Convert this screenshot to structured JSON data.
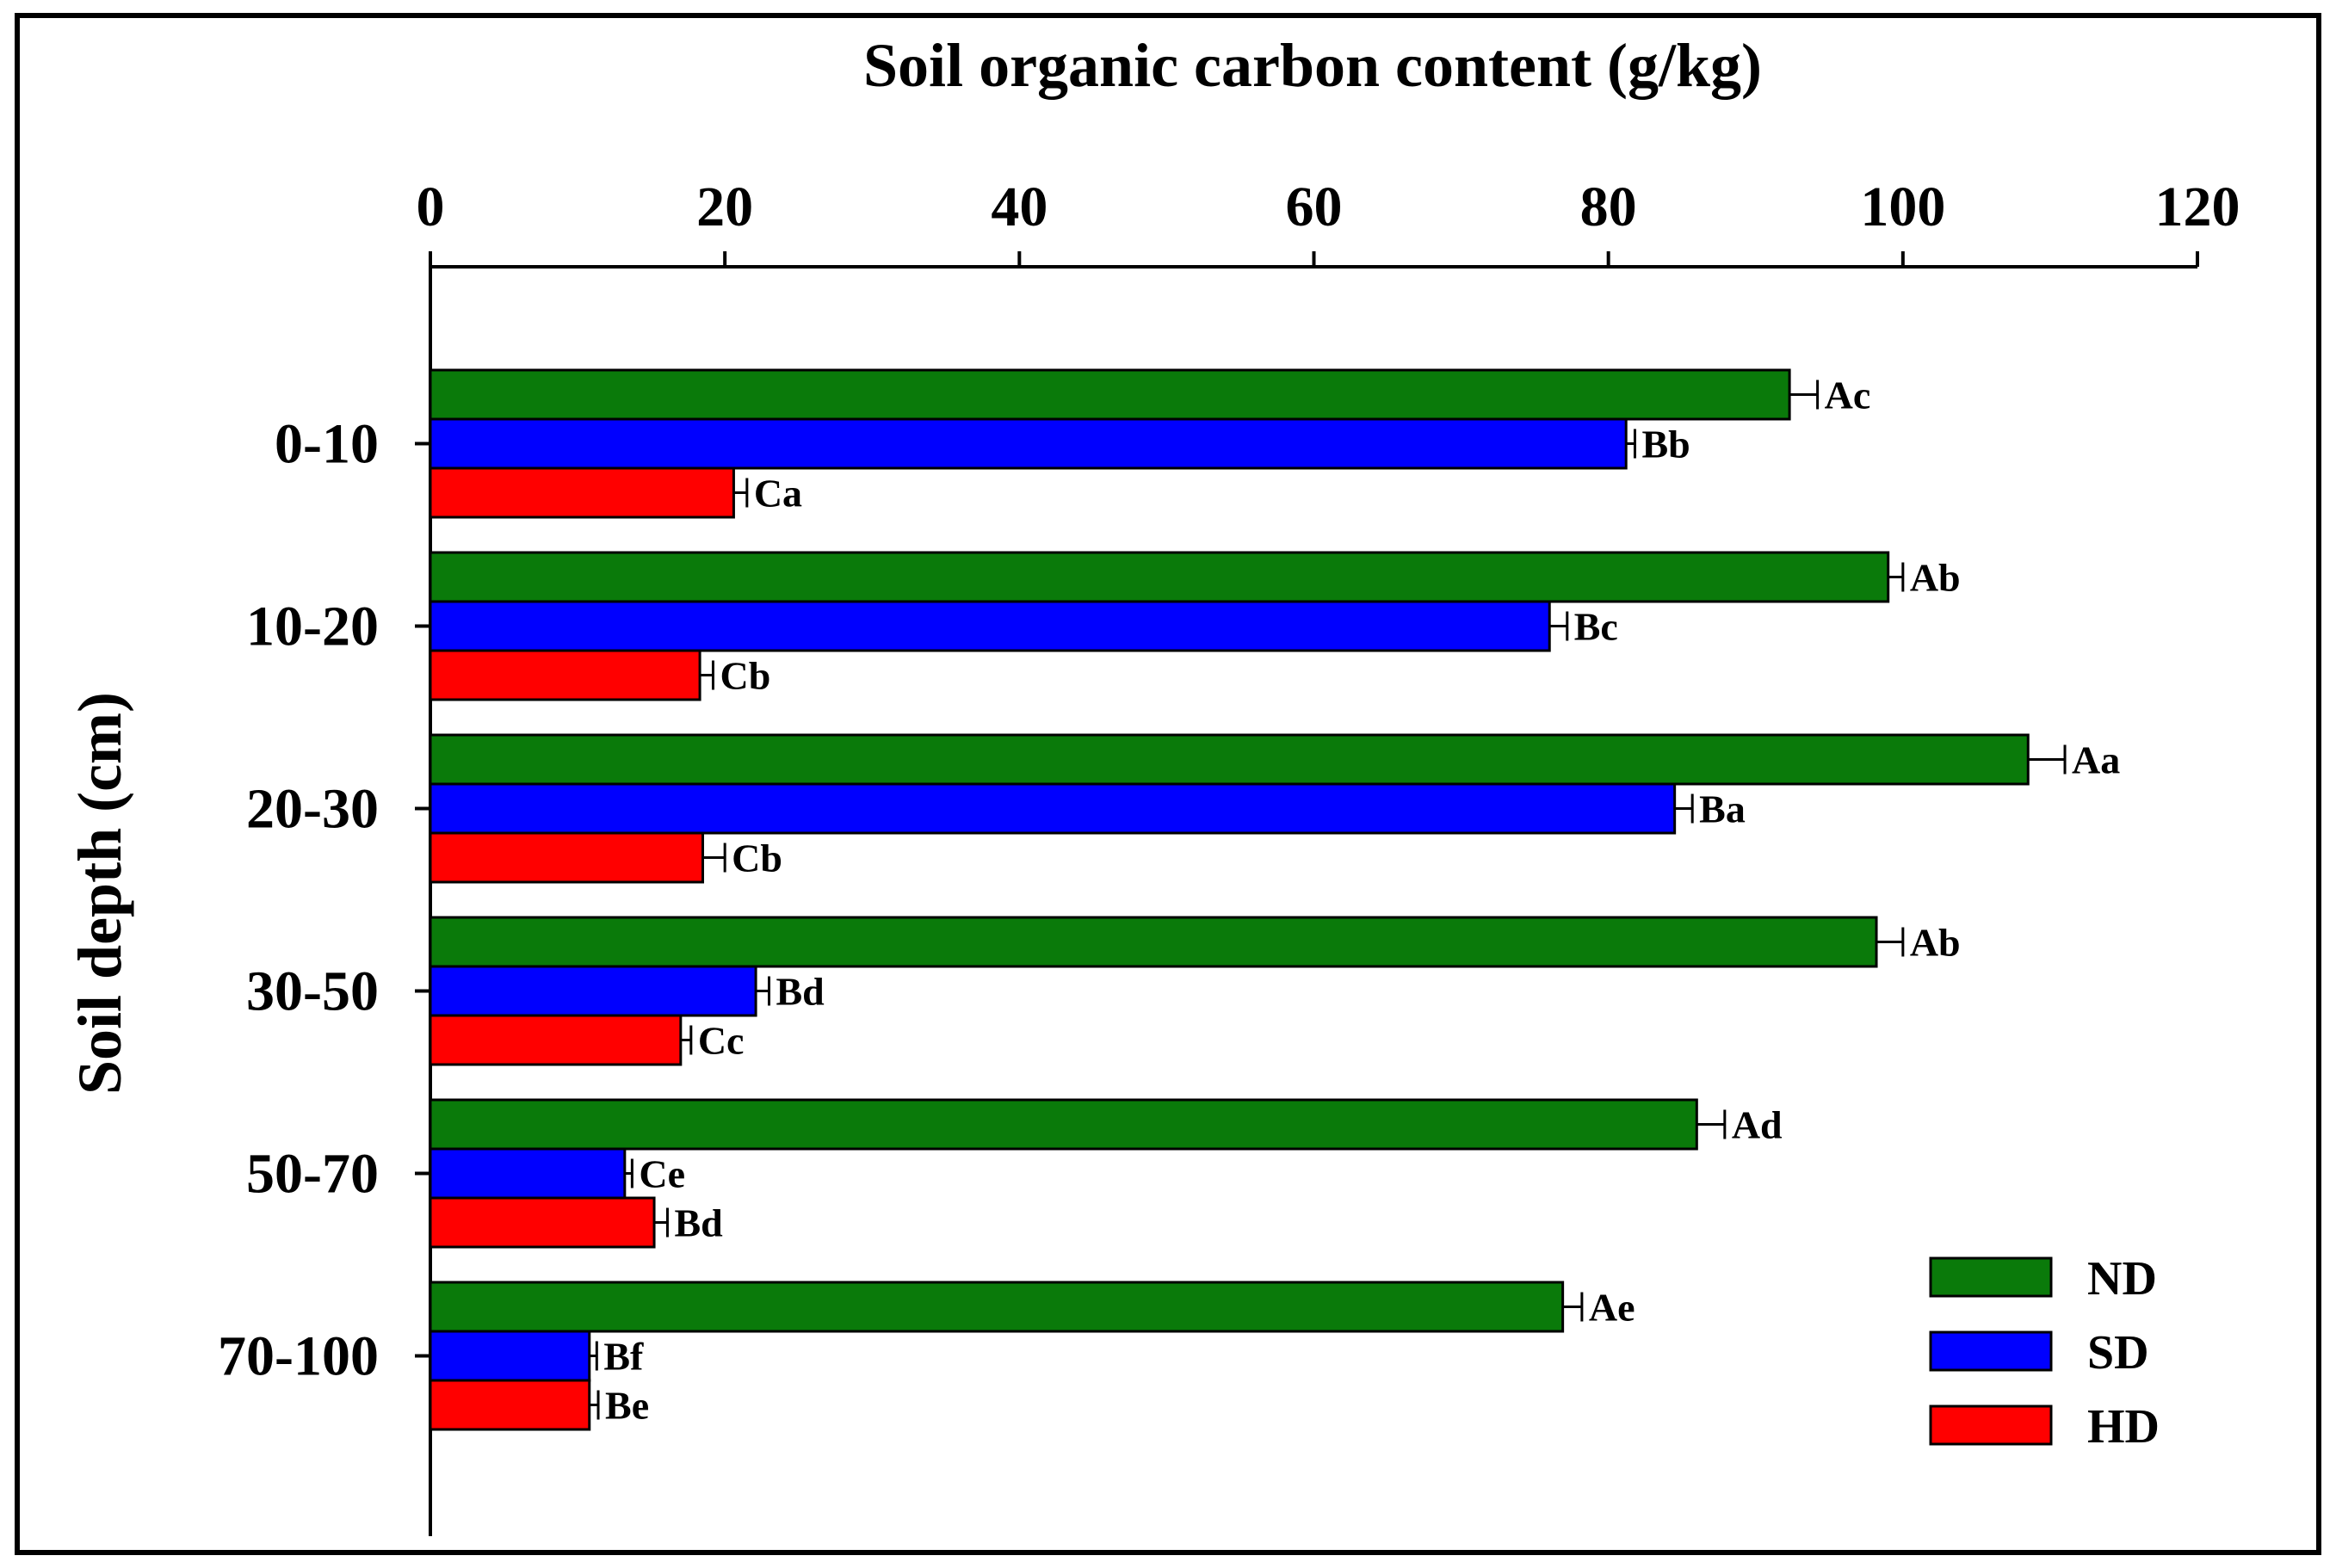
{
  "chart_data": {
    "type": "bar",
    "orientation": "horizontal",
    "title": "Soil organic carbon content (g/kg)",
    "xlabel": "Soil organic carbon content (g/kg)",
    "ylabel": "Soil depth (cm)",
    "xlim": [
      0,
      120
    ],
    "xticks": [
      0,
      20,
      40,
      60,
      80,
      100,
      120
    ],
    "x_axis_position": "top",
    "categories": [
      "0-10",
      "10-20",
      "20-30",
      "30-50",
      "50-70",
      "70-100"
    ],
    "legend_position": "bottom-right",
    "series": [
      {
        "name": "ND",
        "color": "#0a7a0a",
        "values": [
          92.3,
          99.0,
          108.5,
          98.2,
          86.0,
          76.9
        ],
        "errors": [
          1.9,
          1.0,
          2.5,
          1.8,
          1.9,
          1.3
        ],
        "letters": [
          "Ac",
          "Ab",
          "Aa",
          "Ab",
          "Ad",
          "Ae"
        ]
      },
      {
        "name": "SD",
        "color": "#0000ff",
        "values": [
          81.2,
          76.0,
          84.5,
          22.1,
          13.2,
          10.8
        ],
        "errors": [
          0.6,
          1.2,
          1.2,
          0.9,
          0.5,
          0.5
        ],
        "letters": [
          "Bb",
          "Bc",
          "Ba",
          "Bd",
          "Ce",
          "Bf"
        ]
      },
      {
        "name": "HD",
        "color": "#ff0000",
        "values": [
          20.6,
          18.3,
          18.5,
          17.0,
          15.2,
          10.8
        ],
        "errors": [
          0.9,
          0.9,
          1.5,
          0.7,
          0.9,
          0.6
        ],
        "letters": [
          "Ca",
          "Cb",
          "Cb",
          "Cc",
          "Bd",
          "Be"
        ]
      }
    ]
  }
}
